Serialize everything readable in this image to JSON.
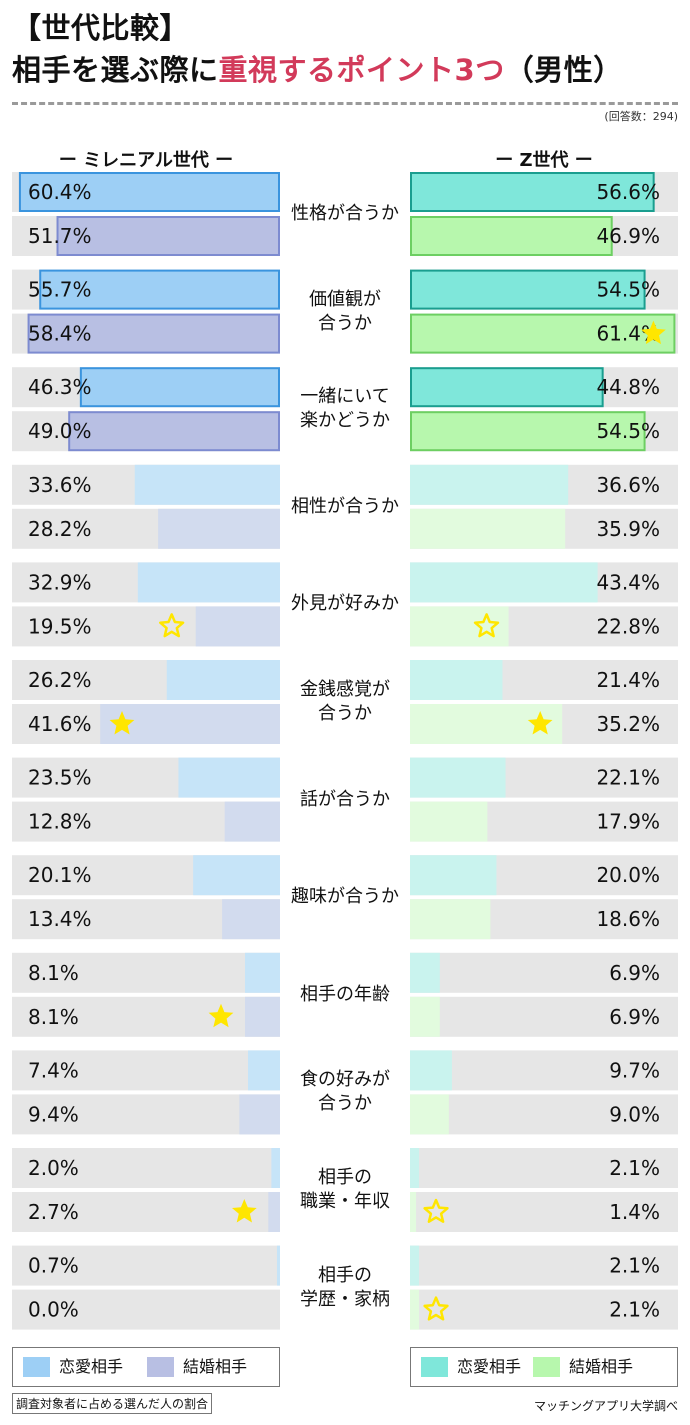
{
  "title_line1": "【世代比較】",
  "title_line2_pre": "相手を選ぶ際に",
  "title_line2_hl": "重視するポイント3つ",
  "title_line2_post": "（男性）",
  "respondents": "(回答数：294)",
  "left_header": "ー ミレニアル世代 ー",
  "right_header": "ー Z世代 ー",
  "note": "調査対象者に占める選んだ人の割合",
  "credit": "マッチングアプリ大学調べ",
  "colors": {
    "mill_love": "#9dcff5",
    "mill_love_border": "#3a94de",
    "mill_marry": "#b8bfe3",
    "mill_marry_border": "#7d8bd0",
    "z_love": "#7fe7da",
    "z_love_border": "#1a9e8f",
    "z_marry": "#b7f7ad",
    "z_marry_border": "#6dcf62",
    "mill_love_light": "#c6e4f8",
    "mill_marry_light": "#d2dbee",
    "z_love_light": "#c9f3ee",
    "z_marry_light": "#e2fbde",
    "track": "#e6e6e6",
    "star": "#ffe600",
    "title_highlight": "#d23a5a"
  },
  "legend": {
    "left": [
      {
        "label": "恋愛相手"
      },
      {
        "label": "結婚相手"
      }
    ],
    "right": [
      {
        "label": "恋愛相手"
      },
      {
        "label": "結婚相手"
      }
    ]
  },
  "chart_data": {
    "type": "bar",
    "orientation": "horizontal",
    "groups": [
      "ミレニアル世代",
      "Z世代"
    ],
    "series": [
      "恋愛相手",
      "結婚相手"
    ],
    "categories": [
      {
        "label": [
          "性格が合うか"
        ],
        "mill": [
          "60.4%",
          "51.7%"
        ],
        "mill_v": [
          60.4,
          51.7
        ],
        "z": [
          "56.6%",
          "46.9%"
        ],
        "z_v": [
          56.6,
          46.9
        ],
        "top3": true,
        "star_mill": null,
        "star_z": null
      },
      {
        "label": [
          "価値観が",
          "合うか"
        ],
        "mill": [
          "55.7%",
          "58.4%"
        ],
        "mill_v": [
          55.7,
          58.4
        ],
        "z": [
          "54.5%",
          "61.4%"
        ],
        "z_v": [
          54.5,
          61.4
        ],
        "top3": true,
        "star_mill": null,
        "star_z": "filled"
      },
      {
        "label": [
          "一緒にいて",
          "楽かどうか"
        ],
        "mill": [
          "46.3%",
          "49.0%"
        ],
        "mill_v": [
          46.3,
          49.0
        ],
        "z": [
          "44.8%",
          "54.5%"
        ],
        "z_v": [
          44.8,
          54.5
        ],
        "top3": true,
        "star_mill": null,
        "star_z": null
      },
      {
        "label": [
          "相性が合うか"
        ],
        "mill": [
          "33.6%",
          "28.2%"
        ],
        "mill_v": [
          33.6,
          28.2
        ],
        "z": [
          "36.6%",
          "35.9%"
        ],
        "z_v": [
          36.6,
          35.9
        ],
        "top3": false,
        "star_mill": null,
        "star_z": null
      },
      {
        "label": [
          "外見が好みか"
        ],
        "mill": [
          "32.9%",
          "19.5%"
        ],
        "mill_v": [
          32.9,
          19.5
        ],
        "z": [
          "43.4%",
          "22.8%"
        ],
        "z_v": [
          43.4,
          22.8
        ],
        "top3": false,
        "star_mill": "outline",
        "star_z": "outline"
      },
      {
        "label": [
          "金銭感覚が",
          "合うか"
        ],
        "mill": [
          "26.2%",
          "41.6%"
        ],
        "mill_v": [
          26.2,
          41.6
        ],
        "z": [
          "21.4%",
          "35.2%"
        ],
        "z_v": [
          21.4,
          35.2
        ],
        "top3": false,
        "star_mill": "filled",
        "star_z": "filled"
      },
      {
        "label": [
          "話が合うか"
        ],
        "mill": [
          "23.5%",
          "12.8%"
        ],
        "mill_v": [
          23.5,
          12.8
        ],
        "z": [
          "22.1%",
          "17.9%"
        ],
        "z_v": [
          22.1,
          17.9
        ],
        "top3": false,
        "star_mill": null,
        "star_z": null
      },
      {
        "label": [
          "趣味が合うか"
        ],
        "mill": [
          "20.1%",
          "13.4%"
        ],
        "mill_v": [
          20.1,
          13.4
        ],
        "z": [
          "20.0%",
          "18.6%"
        ],
        "z_v": [
          20.0,
          18.6
        ],
        "top3": false,
        "star_mill": null,
        "star_z": null
      },
      {
        "label": [
          "相手の年齢"
        ],
        "mill": [
          "8.1%",
          "8.1%"
        ],
        "mill_v": [
          8.1,
          8.1
        ],
        "z": [
          "6.9%",
          "6.9%"
        ],
        "z_v": [
          6.9,
          6.9
        ],
        "top3": false,
        "star_mill": "filled",
        "star_z": null
      },
      {
        "label": [
          "食の好みが",
          "合うか"
        ],
        "mill": [
          "7.4%",
          "9.4%"
        ],
        "mill_v": [
          7.4,
          9.4
        ],
        "z": [
          "9.7%",
          "9.0%"
        ],
        "z_v": [
          9.7,
          9.0
        ],
        "top3": false,
        "star_mill": null,
        "star_z": null
      },
      {
        "label": [
          "相手の",
          "職業・年収"
        ],
        "mill": [
          "2.0%",
          "2.7%"
        ],
        "mill_v": [
          2.0,
          2.7
        ],
        "z": [
          "2.1%",
          "1.4%"
        ],
        "z_v": [
          2.1,
          1.4
        ],
        "top3": false,
        "star_mill": "filled",
        "star_z": "outline"
      },
      {
        "label": [
          "相手の",
          "学歴・家柄"
        ],
        "mill": [
          "0.7%",
          "0.0%"
        ],
        "mill_v": [
          0.7,
          0.0
        ],
        "z": [
          "2.1%",
          "2.1%"
        ],
        "z_v": [
          2.1,
          2.1
        ],
        "top3": false,
        "star_mill": null,
        "star_z": "outline"
      }
    ]
  }
}
